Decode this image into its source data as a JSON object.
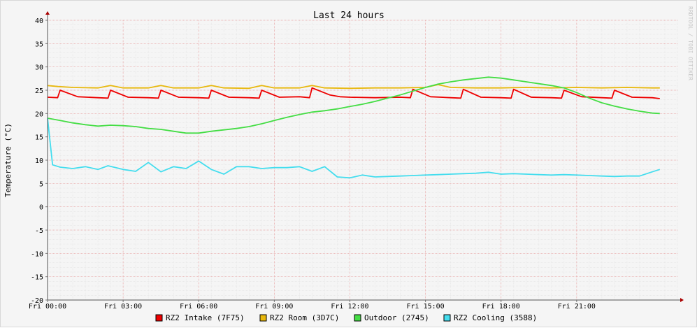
{
  "chart_data": {
    "type": "line",
    "title": "Last 24 hours",
    "ylabel": "Temperature (°C)",
    "watermark": "RRDTOOL / TOBI OETIKER",
    "xlim": [
      0,
      25
    ],
    "ylim": [
      -20,
      40
    ],
    "y_ticks": [
      40,
      35,
      30,
      25,
      20,
      15,
      10,
      5,
      0,
      -5,
      -10,
      -15,
      -20
    ],
    "x_ticks": [
      {
        "x": 0,
        "label": "Fri 00:00"
      },
      {
        "x": 3,
        "label": "Fri 03:00"
      },
      {
        "x": 6,
        "label": "Fri 06:00"
      },
      {
        "x": 9,
        "label": "Fri 09:00"
      },
      {
        "x": 12,
        "label": "Fri 12:00"
      },
      {
        "x": 15,
        "label": "Fri 15:00"
      },
      {
        "x": 18,
        "label": "Fri 18:00"
      },
      {
        "x": 21,
        "label": "Fri 21:00"
      }
    ],
    "grid": true,
    "legend_position": "bottom",
    "series": [
      {
        "name": "RZ2 Intake (7F75)",
        "color": "#ee0000",
        "x": [
          0,
          0.4,
          0.5,
          1.2,
          2.0,
          2.4,
          2.5,
          3.2,
          4.0,
          4.4,
          4.5,
          5.2,
          6.0,
          6.4,
          6.5,
          7.2,
          8.0,
          8.4,
          8.5,
          9.2,
          10.0,
          10.4,
          10.5,
          11.2,
          11.6,
          12.0,
          13.0,
          14.0,
          14.4,
          14.5,
          15.2,
          16.0,
          16.4,
          16.5,
          17.2,
          18.0,
          18.4,
          18.5,
          19.2,
          20.0,
          20.4,
          20.5,
          21.2,
          22.0,
          22.4,
          22.5,
          23.2,
          24.0,
          24.3
        ],
        "y": [
          23.5,
          23.4,
          25.0,
          23.6,
          23.4,
          23.3,
          25.0,
          23.5,
          23.4,
          23.3,
          25.0,
          23.5,
          23.4,
          23.3,
          25.0,
          23.5,
          23.4,
          23.3,
          25.0,
          23.5,
          23.6,
          23.4,
          25.5,
          24.0,
          23.6,
          23.5,
          23.4,
          23.5,
          23.4,
          25.2,
          23.6,
          23.4,
          23.3,
          25.2,
          23.5,
          23.4,
          23.3,
          25.2,
          23.5,
          23.4,
          23.3,
          25.0,
          23.6,
          23.4,
          23.3,
          25.0,
          23.5,
          23.4,
          23.2
        ]
      },
      {
        "name": "RZ2 Room (3D7C)",
        "color": "#e8b80d",
        "x": [
          0,
          0.4,
          1.0,
          2.0,
          2.5,
          3.0,
          4.0,
          4.5,
          5.0,
          6.0,
          6.5,
          7.0,
          8.0,
          8.5,
          9.0,
          10.0,
          10.5,
          11.0,
          12.0,
          13.0,
          14.0,
          15.0,
          15.5,
          16.0,
          17.0,
          18.0,
          19.0,
          20.0,
          21.0,
          22.0,
          23.0,
          24.0,
          24.3
        ],
        "y": [
          26.0,
          25.8,
          25.6,
          25.5,
          26.0,
          25.5,
          25.5,
          26.0,
          25.5,
          25.5,
          26.0,
          25.5,
          25.4,
          26.0,
          25.5,
          25.5,
          26.0,
          25.5,
          25.4,
          25.5,
          25.5,
          25.6,
          26.2,
          25.6,
          25.5,
          25.5,
          25.6,
          25.5,
          25.6,
          25.5,
          25.6,
          25.5,
          25.5
        ]
      },
      {
        "name": "Outdoor (2745)",
        "color": "#44dd44",
        "x": [
          0,
          0.5,
          1.0,
          1.5,
          2.0,
          2.5,
          3.0,
          3.5,
          4.0,
          4.5,
          5.0,
          5.5,
          6.0,
          6.5,
          7.0,
          7.5,
          8.0,
          8.5,
          9.0,
          9.5,
          10.0,
          10.5,
          11.0,
          11.5,
          12.0,
          12.5,
          13.0,
          13.5,
          14.0,
          14.5,
          15.0,
          15.5,
          16.0,
          16.5,
          17.0,
          17.5,
          18.0,
          18.5,
          19.0,
          19.5,
          20.0,
          20.5,
          21.0,
          21.5,
          22.0,
          22.5,
          23.0,
          23.5,
          24.0,
          24.3
        ],
        "y": [
          19.0,
          18.5,
          18.0,
          17.6,
          17.3,
          17.5,
          17.4,
          17.2,
          16.8,
          16.6,
          16.2,
          15.8,
          15.8,
          16.2,
          16.5,
          16.8,
          17.2,
          17.8,
          18.5,
          19.2,
          19.8,
          20.3,
          20.6,
          21.0,
          21.5,
          22.0,
          22.6,
          23.3,
          24.0,
          24.8,
          25.6,
          26.3,
          26.8,
          27.2,
          27.5,
          27.8,
          27.6,
          27.2,
          26.8,
          26.4,
          26.0,
          25.5,
          24.5,
          23.3,
          22.3,
          21.6,
          21.0,
          20.5,
          20.1,
          20.0
        ]
      },
      {
        "name": "RZ2 Cooling (3588)",
        "color": "#44ddee",
        "x": [
          0,
          0.2,
          0.5,
          1.0,
          1.5,
          2.0,
          2.4,
          3.0,
          3.5,
          4.0,
          4.5,
          5.0,
          5.5,
          6.0,
          6.5,
          7.0,
          7.5,
          8.0,
          8.5,
          9.0,
          9.5,
          10.0,
          10.5,
          11.0,
          11.5,
          12.0,
          12.5,
          13.0,
          13.5,
          14.0,
          14.5,
          15.0,
          15.5,
          16.0,
          16.5,
          17.0,
          17.5,
          18.0,
          18.5,
          19.0,
          19.5,
          20.0,
          20.5,
          21.0,
          21.5,
          22.0,
          22.5,
          23.0,
          23.5,
          24.0,
          24.3
        ],
        "y": [
          19.0,
          9.0,
          8.5,
          8.2,
          8.6,
          8.0,
          8.8,
          8.0,
          7.6,
          9.5,
          7.5,
          8.6,
          8.2,
          9.8,
          8.0,
          7.0,
          8.6,
          8.6,
          8.2,
          8.4,
          8.4,
          8.6,
          7.6,
          8.6,
          6.4,
          6.2,
          6.8,
          6.4,
          6.5,
          6.6,
          6.7,
          6.8,
          6.9,
          7.0,
          7.1,
          7.2,
          7.4,
          7.0,
          7.1,
          7.0,
          6.9,
          6.8,
          6.9,
          6.8,
          6.7,
          6.6,
          6.5,
          6.6,
          6.6,
          7.5,
          8.0
        ]
      }
    ]
  }
}
